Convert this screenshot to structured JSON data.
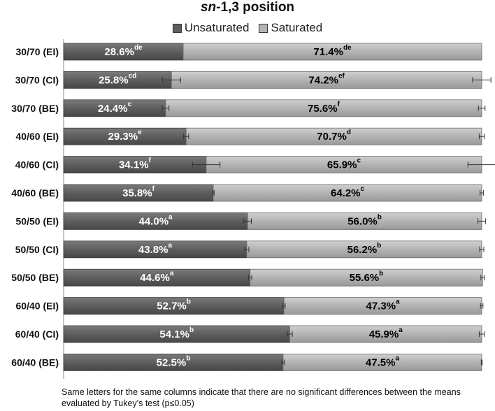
{
  "title_prefix": "sn",
  "title_rest": "-1,3 position",
  "footnote": "Same letters for the same columns indicate that there are no significant differences between the means evaluated by Tukey's test (p≤0.05)",
  "colors": {
    "unsaturated": "#5e5e5e",
    "saturated": "#b3b3b3",
    "error_bar": "#333333"
  },
  "chart_data": {
    "type": "bar",
    "orientation": "horizontal",
    "stacked": true,
    "xlim": [
      0,
      100
    ],
    "categories": [
      "30/70 (EI)",
      "30/70 (CI)",
      "30/70 (BE)",
      "40/60 (EI)",
      "40/60 (CI)",
      "40/60 (BE)",
      "50/50 (EI)",
      "50/50 (CI)",
      "50/50 (BE)",
      "60/40 (EI)",
      "60/40 (CI)",
      "60/40 (BE)"
    ],
    "series": [
      {
        "name": "Unsaturated",
        "values": [
          28.6,
          25.8,
          24.4,
          29.3,
          34.1,
          35.8,
          44.0,
          43.8,
          44.6,
          52.7,
          54.1,
          52.5
        ],
        "letters": [
          "de",
          "cd",
          "c",
          "e",
          "f",
          "f",
          "a",
          "a",
          "a",
          "b",
          "b",
          "b"
        ],
        "errors": [
          0,
          2.2,
          0.8,
          0.6,
          3.3,
          0.2,
          0.9,
          0.5,
          0.4,
          0.3,
          0.6,
          0.3
        ]
      },
      {
        "name": "Saturated",
        "values": [
          71.4,
          74.2,
          75.6,
          70.7,
          65.9,
          64.2,
          56.0,
          56.2,
          55.6,
          47.3,
          45.9,
          47.5
        ],
        "letters": [
          "de",
          "ef",
          "f",
          "d",
          "c",
          "c",
          "b",
          "b",
          "b",
          "a",
          "a",
          "a"
        ],
        "errors": [
          0,
          2.2,
          0.8,
          0.6,
          3.3,
          0.4,
          0.9,
          0.5,
          0.4,
          0.3,
          0.6,
          0.1
        ]
      }
    ]
  }
}
